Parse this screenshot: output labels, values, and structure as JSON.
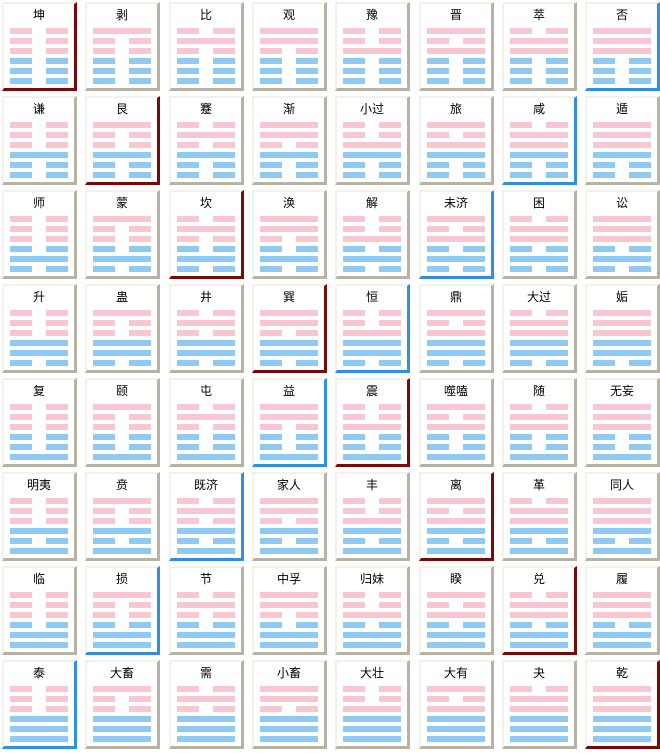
{
  "colors": {
    "upper_trigram": "#f9c7d2",
    "lower_trigram": "#8fcaf2",
    "accent_red": "#7a0a0a",
    "accent_blue": "#2f8fe0",
    "frame_shadow": "#b7b3a4"
  },
  "hexagrams": [
    {
      "name": "坤",
      "lines": "000000",
      "accent": "red"
    },
    {
      "name": "剥",
      "lines": "100000",
      "accent": "none"
    },
    {
      "name": "比",
      "lines": "010000",
      "accent": "none"
    },
    {
      "name": "观",
      "lines": "110000",
      "accent": "none"
    },
    {
      "name": "豫",
      "lines": "001000",
      "accent": "none"
    },
    {
      "name": "晋",
      "lines": "101000",
      "accent": "none"
    },
    {
      "name": "萃",
      "lines": "011000",
      "accent": "none"
    },
    {
      "name": "否",
      "lines": "111000",
      "accent": "blue"
    },
    {
      "name": "谦",
      "lines": "000100",
      "accent": "none"
    },
    {
      "name": "艮",
      "lines": "100100",
      "accent": "red"
    },
    {
      "name": "蹇",
      "lines": "010100",
      "accent": "none"
    },
    {
      "name": "渐",
      "lines": "110100",
      "accent": "none"
    },
    {
      "name": "小过",
      "lines": "001100",
      "accent": "none"
    },
    {
      "name": "旅",
      "lines": "101100",
      "accent": "none"
    },
    {
      "name": "咸",
      "lines": "011100",
      "accent": "blue"
    },
    {
      "name": "遁",
      "lines": "111100",
      "accent": "none"
    },
    {
      "name": "师",
      "lines": "000010",
      "accent": "none"
    },
    {
      "name": "蒙",
      "lines": "100010",
      "accent": "none"
    },
    {
      "name": "坎",
      "lines": "010010",
      "accent": "red"
    },
    {
      "name": "涣",
      "lines": "110010",
      "accent": "none"
    },
    {
      "name": "解",
      "lines": "001010",
      "accent": "none"
    },
    {
      "name": "未济",
      "lines": "101010",
      "accent": "blue"
    },
    {
      "name": "困",
      "lines": "011010",
      "accent": "none"
    },
    {
      "name": "讼",
      "lines": "111010",
      "accent": "none"
    },
    {
      "name": "升",
      "lines": "000110",
      "accent": "none"
    },
    {
      "name": "蛊",
      "lines": "100110",
      "accent": "none"
    },
    {
      "name": "井",
      "lines": "010110",
      "accent": "none"
    },
    {
      "name": "巽",
      "lines": "110110",
      "accent": "red"
    },
    {
      "name": "恒",
      "lines": "001110",
      "accent": "blue"
    },
    {
      "name": "鼎",
      "lines": "101110",
      "accent": "none"
    },
    {
      "name": "大过",
      "lines": "011110",
      "accent": "none"
    },
    {
      "name": "姤",
      "lines": "111110",
      "accent": "none"
    },
    {
      "name": "复",
      "lines": "000001",
      "accent": "none"
    },
    {
      "name": "颐",
      "lines": "100001",
      "accent": "none"
    },
    {
      "name": "屯",
      "lines": "010001",
      "accent": "none"
    },
    {
      "name": "益",
      "lines": "110001",
      "accent": "blue"
    },
    {
      "name": "震",
      "lines": "001001",
      "accent": "red"
    },
    {
      "name": "噬嗑",
      "lines": "101001",
      "accent": "none"
    },
    {
      "name": "随",
      "lines": "011001",
      "accent": "none"
    },
    {
      "name": "无妄",
      "lines": "111001",
      "accent": "none"
    },
    {
      "name": "明夷",
      "lines": "000101",
      "accent": "none"
    },
    {
      "name": "贲",
      "lines": "100101",
      "accent": "none"
    },
    {
      "name": "既济",
      "lines": "010101",
      "accent": "blue"
    },
    {
      "name": "家人",
      "lines": "110101",
      "accent": "none"
    },
    {
      "name": "丰",
      "lines": "001101",
      "accent": "none"
    },
    {
      "name": "离",
      "lines": "101101",
      "accent": "red"
    },
    {
      "name": "革",
      "lines": "011101",
      "accent": "none"
    },
    {
      "name": "同人",
      "lines": "111101",
      "accent": "none"
    },
    {
      "name": "临",
      "lines": "000011",
      "accent": "none"
    },
    {
      "name": "损",
      "lines": "100011",
      "accent": "blue"
    },
    {
      "name": "节",
      "lines": "010011",
      "accent": "none"
    },
    {
      "name": "中孚",
      "lines": "110011",
      "accent": "none"
    },
    {
      "name": "归妹",
      "lines": "001011",
      "accent": "none"
    },
    {
      "name": "睽",
      "lines": "101011",
      "accent": "none"
    },
    {
      "name": "兑",
      "lines": "011011",
      "accent": "red"
    },
    {
      "name": "履",
      "lines": "111011",
      "accent": "none"
    },
    {
      "name": "泰",
      "lines": "000111",
      "accent": "blue"
    },
    {
      "name": "大畜",
      "lines": "100111",
      "accent": "none"
    },
    {
      "name": "需",
      "lines": "010111",
      "accent": "none"
    },
    {
      "name": "小畜",
      "lines": "110111",
      "accent": "none"
    },
    {
      "name": "大壮",
      "lines": "001111",
      "accent": "none"
    },
    {
      "name": "大有",
      "lines": "101111",
      "accent": "none"
    },
    {
      "name": "夬",
      "lines": "011111",
      "accent": "none"
    },
    {
      "name": "乾",
      "lines": "111111",
      "accent": "red"
    }
  ]
}
